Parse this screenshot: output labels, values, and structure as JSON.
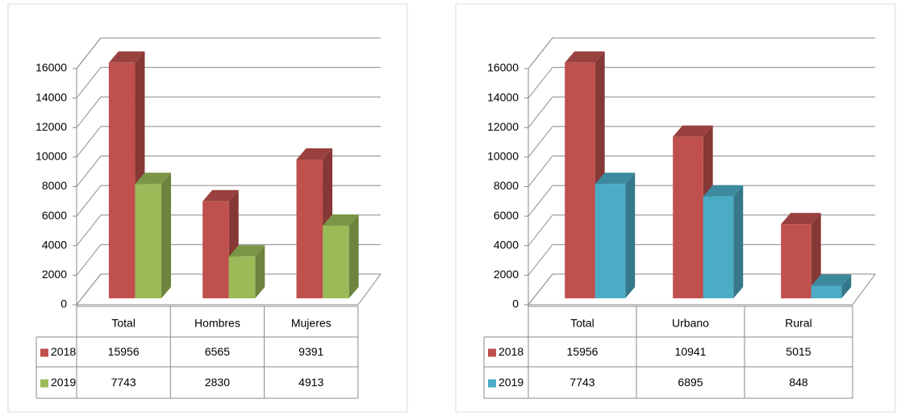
{
  "chart_data": [
    {
      "type": "bar",
      "categories": [
        "Total",
        "Hombres",
        "Mujeres"
      ],
      "series": [
        {
          "name": "2018",
          "color": "#c0504d",
          "values": [
            15956,
            6565,
            9391
          ]
        },
        {
          "name": "2019",
          "color": "#9bbb59",
          "values": [
            7743,
            2830,
            4913
          ]
        }
      ],
      "ylim": [
        0,
        16000
      ],
      "yticks": [
        0,
        2000,
        4000,
        6000,
        8000,
        10000,
        12000,
        14000,
        16000
      ],
      "grid": true
    },
    {
      "type": "bar",
      "categories": [
        "Total",
        "Urbano",
        "Rural"
      ],
      "series": [
        {
          "name": "2018",
          "color": "#c0504d",
          "values": [
            15956,
            10941,
            5015
          ]
        },
        {
          "name": "2019",
          "color": "#4bacc6",
          "values": [
            7743,
            6895,
            848
          ]
        }
      ],
      "ylim": [
        0,
        16000
      ],
      "yticks": [
        0,
        2000,
        4000,
        6000,
        8000,
        10000,
        12000,
        14000,
        16000
      ],
      "grid": true
    }
  ]
}
